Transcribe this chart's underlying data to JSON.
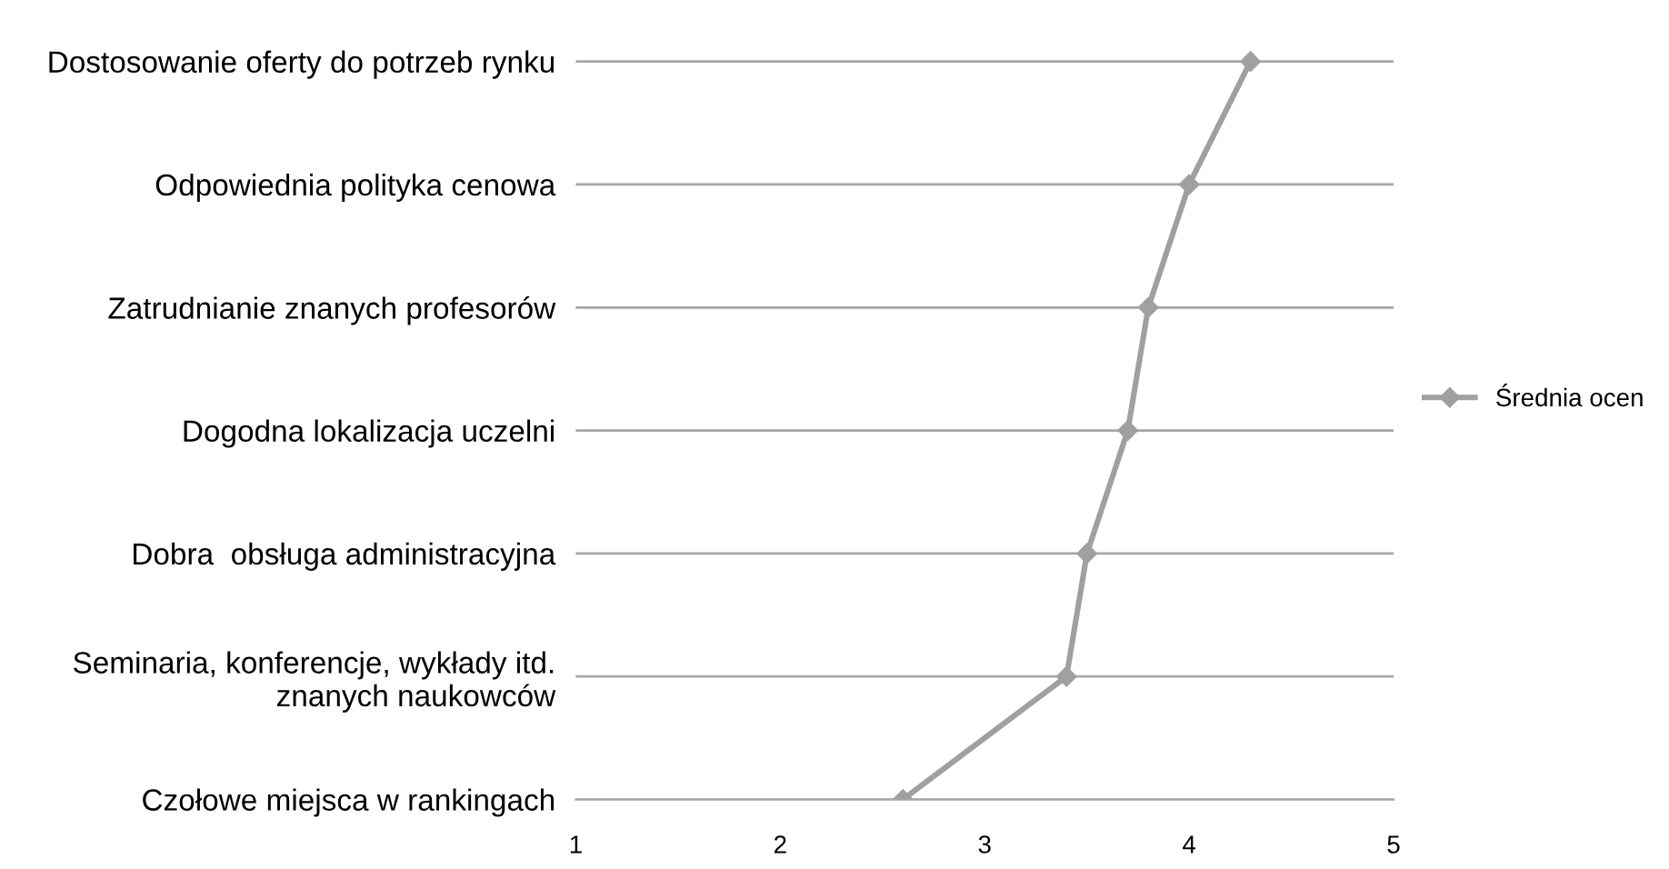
{
  "chart_data": {
    "type": "line",
    "orientation": "horizontal",
    "categories": [
      "Dostosowanie oferty do potrzeb rynku",
      "Odpowiednia polityka cenowa",
      "Zatrudnianie znanych profesorów",
      "Dogodna lokalizacja uczelni",
      "Dobra  obsługa administracyjna",
      "Seminaria, konferencje, wykłady itd.\nznanych naukowców",
      "Czołowe miejsca w rankingach"
    ],
    "series": [
      {
        "name": "Średnia ocen",
        "color": "#a0a0a0",
        "values": [
          4.3,
          4.0,
          3.8,
          3.7,
          3.5,
          3.4,
          2.6
        ]
      }
    ],
    "xlim": [
      1,
      5
    ],
    "xticks": [
      1,
      2,
      3,
      4,
      5
    ],
    "grid": "y",
    "legend": "right",
    "marker": "diamond",
    "line_style": "solid"
  }
}
